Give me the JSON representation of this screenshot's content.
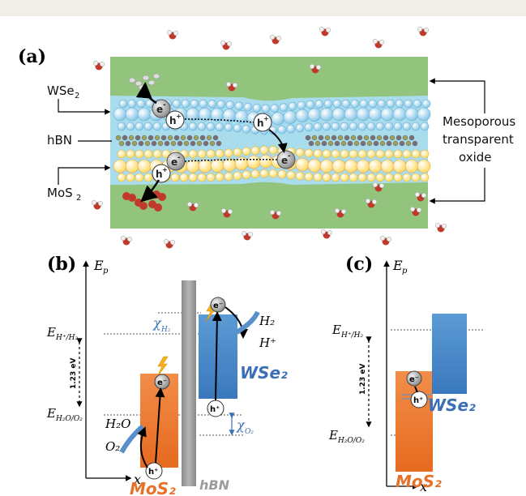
{
  "panel_a": {
    "label": "(a)",
    "layer_labels": {
      "wse2": "WSe",
      "wse2_sub": "2",
      "hbn": "hBN",
      "mos2": "MoS",
      "mos2_sub": "2"
    },
    "oxide_label_line1": "Mesoporous",
    "oxide_label_line2": "transparent",
    "oxide_label_line3": "oxide",
    "electron": "e",
    "electron_sup": "-",
    "hole": "h",
    "hole_sup": "+"
  },
  "panel_b": {
    "label": "(b)",
    "axis_y": "E",
    "axis_y_sub": "p",
    "axis_x": "x",
    "level_h": "E",
    "level_h_sub": "H⁺/H₂",
    "level_o": "E",
    "level_o_sub": "H₂O/O₂",
    "gap": "1.23 eV",
    "chi_h": "χ",
    "chi_h_sub": "H₂",
    "chi_o": "χ",
    "chi_o_sub": "O₂",
    "h2": "H₂",
    "hplus": "H⁺",
    "h2o": "H₂O",
    "o2": "O₂",
    "wse2": "WSe₂",
    "mos2": "MoS₂",
    "hbn": "hBN",
    "electron": "e⁻",
    "hole": "h⁺"
  },
  "panel_c": {
    "label": "(c)",
    "axis_y": "E",
    "axis_y_sub": "p",
    "axis_x": "x",
    "level_h": "E",
    "level_h_sub": "H⁺/H₂",
    "level_o": "E",
    "level_o_sub": "H₂O/O₂",
    "gap": "1.23 eV",
    "wse2": "WSe₂",
    "mos2": "MoS₂",
    "electron": "e⁻",
    "hole": "h⁺"
  },
  "colors": {
    "oxide_green": "#92c47d",
    "water_blue": "#a9dcec",
    "wse2_blue": "#3f83c8",
    "mos2_orange": "#ed7a2f",
    "hbn_gray": "#9b9b9b",
    "label_blue": "#3b6fb6",
    "label_orange": "#e8712a"
  }
}
